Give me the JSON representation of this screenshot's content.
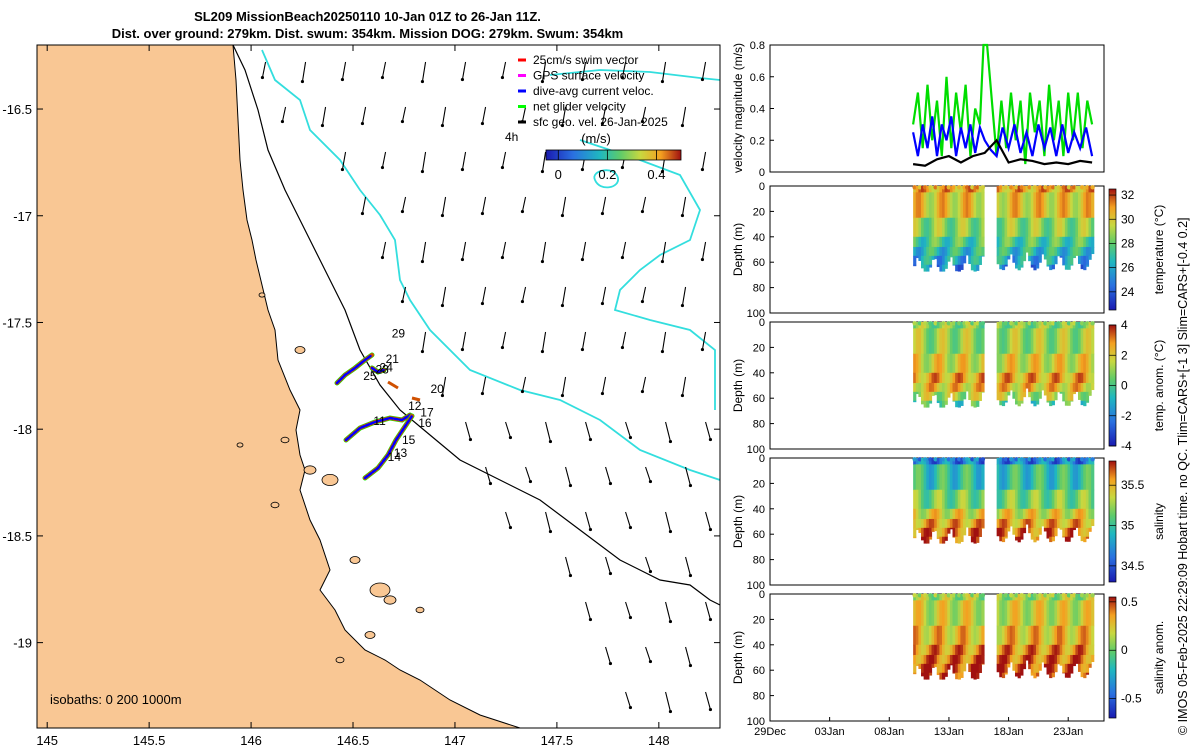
{
  "title": {
    "line1": "SL209 MissionBeach20250110 10-Jan 01Z to 26-Jan 11Z.",
    "line2": "Dist. over ground: 279km. Dist. swum: 354km. Mission DOG: 279km. Swum: 354km"
  },
  "credit": "© IMOS 05-Feb-2025 22:29:09 Hobart time. no QC. Tlim=CARS+[-1 3] Slim=CARS+[-0.4 0.2]",
  "colors": {
    "land": "#f9c794",
    "isobath": "#33dede",
    "ocean": "#ffffff",
    "coast": "#000000"
  },
  "chart_data": [
    {
      "type": "map",
      "x": {
        "ticks": [
          145,
          145.5,
          146,
          146.5,
          147,
          147.5,
          148
        ],
        "tick_labels": [
          "145",
          "145.5",
          "146",
          "146.5",
          "147",
          "147.5",
          "148"
        ],
        "range": [
          144.95,
          148.3
        ]
      },
      "y": {
        "ticks": [
          -16.5,
          -17,
          -17.5,
          -18,
          -18.5,
          -19
        ],
        "tick_labels": [
          "-16.5",
          "-17",
          "-17.5",
          "-18",
          "-18.5",
          "-19"
        ],
        "range": [
          -19.4,
          -16.2
        ]
      },
      "legend": {
        "entries": [
          {
            "label": "25cm/s swim vector",
            "color": "#ff0000"
          },
          {
            "label": "GPS surface velocity",
            "color": "#ff00ff"
          },
          {
            "label": "dive-avg current veloc.",
            "color": "#0000ff"
          },
          {
            "label": "net glider velocity",
            "color": "#00ff00"
          },
          {
            "label": "sfc geo. vel. 26-Jan-2025",
            "color": "#000000"
          }
        ],
        "scale_label": "4h"
      },
      "colorbar": {
        "title": "(m/s)",
        "ticks": [
          0,
          0.2,
          0.4
        ],
        "tick_labels": [
          "0",
          "0.2",
          "0.4"
        ],
        "range": [
          -0.05,
          0.5
        ]
      },
      "isobaths_label": "isobaths: 0   200  1000m",
      "track_day_labels": [
        {
          "text": "29",
          "lon": 146.69,
          "lat": -17.57
        },
        {
          "text": "21",
          "lon": 146.66,
          "lat": -17.69
        },
        {
          "text": "23",
          "lon": 146.61,
          "lat": -17.74
        },
        {
          "text": "24",
          "lon": 146.63,
          "lat": -17.73
        },
        {
          "text": "25",
          "lon": 146.55,
          "lat": -17.77
        },
        {
          "text": "20",
          "lon": 146.88,
          "lat": -17.83
        },
        {
          "text": "12",
          "lon": 146.77,
          "lat": -17.91
        },
        {
          "text": "17",
          "lon": 146.83,
          "lat": -17.94
        },
        {
          "text": "11",
          "lon": 146.6,
          "lat": -17.98
        },
        {
          "text": "16",
          "lon": 146.82,
          "lat": -17.99
        },
        {
          "text": "15",
          "lon": 146.74,
          "lat": -18.07
        },
        {
          "text": "13",
          "lon": 146.7,
          "lat": -18.13
        },
        {
          "text": "14",
          "lon": 146.67,
          "lat": -18.15
        }
      ]
    },
    {
      "type": "line",
      "ylabel": "velocity magnitude (m/s)",
      "y_ticks": [
        0,
        0.2,
        0.4,
        0.6,
        0.8
      ],
      "y_tick_labels": [
        "0",
        "0.2",
        "0.4",
        "0.6",
        "0.8"
      ],
      "ylim": [
        0,
        0.8
      ],
      "xlim_days": [
        0,
        28
      ],
      "series": [
        {
          "name": "net glider velocity",
          "color": "#00dd00",
          "x": [
            12,
            12.4,
            12.8,
            13.2,
            13.6,
            14,
            14.4,
            14.8,
            15.2,
            15.6,
            16,
            16.4,
            16.8,
            17.2,
            17.6,
            17.9,
            18.2,
            19,
            19.4,
            19.8,
            20.2,
            20.6,
            21,
            21.4,
            21.8,
            22.2,
            22.6,
            23,
            23.4,
            23.8,
            24.2,
            24.6,
            25,
            25.4,
            25.8,
            26.2,
            26.6,
            27
          ],
          "y": [
            0.3,
            0.5,
            0.15,
            0.55,
            0.2,
            0.45,
            0.1,
            0.6,
            0.15,
            0.5,
            0.25,
            0.55,
            0.1,
            0.4,
            0.3,
            0.8,
            0.8,
            0.1,
            0.45,
            0.15,
            0.5,
            0.2,
            0.45,
            0.05,
            0.5,
            0.25,
            0.45,
            0.1,
            0.55,
            0.2,
            0.45,
            0.1,
            0.5,
            0.2,
            0.5,
            0.15,
            0.45,
            0.3
          ]
        },
        {
          "name": "dive-avg current veloc.",
          "color": "#0000ff",
          "x": [
            12,
            12.4,
            12.8,
            13.2,
            13.6,
            14,
            14.4,
            14.8,
            15.2,
            15.6,
            16,
            16.4,
            16.8,
            17.2,
            17.6,
            18,
            18.5,
            19,
            19.5,
            20,
            20.5,
            21,
            21.5,
            22,
            22.5,
            23,
            23.5,
            24,
            24.5,
            25,
            25.5,
            26,
            26.5,
            27
          ],
          "y": [
            0.25,
            0.1,
            0.3,
            0.15,
            0.35,
            0.1,
            0.3,
            0.2,
            0.35,
            0.1,
            0.28,
            0.15,
            0.3,
            0.12,
            0.28,
            0.2,
            0.14,
            0.1,
            0.28,
            0.15,
            0.3,
            0.12,
            0.25,
            0.1,
            0.3,
            0.15,
            0.28,
            0.1,
            0.3,
            0.12,
            0.25,
            0.15,
            0.28,
            0.1
          ]
        },
        {
          "name": "sfc geo. vel.",
          "color": "#000000",
          "x": [
            12,
            13,
            14,
            15,
            16,
            17,
            18,
            19,
            20,
            21,
            22,
            23,
            24,
            25,
            26,
            27
          ],
          "y": [
            0.05,
            0.04,
            0.08,
            0.1,
            0.06,
            0.1,
            0.12,
            0.2,
            0.06,
            0.08,
            0.07,
            0.05,
            0.06,
            0.05,
            0.07,
            0.06
          ]
        }
      ]
    },
    {
      "type": "heatmap",
      "ylabel": "Depth (m)",
      "cbar_label": "temperature (°C)",
      "y_ticks": [
        0,
        20,
        40,
        60,
        80,
        100
      ],
      "y_tick_labels": [
        "0",
        "20",
        "40",
        "60",
        "80",
        "100"
      ],
      "cbar_ticks": [
        24,
        26,
        28,
        30,
        32
      ],
      "cbar_tick_labels": [
        "24",
        "26",
        "28",
        "30",
        "32"
      ],
      "clim": [
        22.5,
        32.5
      ],
      "palette": "parula-like",
      "depth_layers_c": [
        30.5,
        29.8,
        28.2,
        27,
        26.2,
        25.5,
        24.8
      ],
      "layer_depth_m": [
        5,
        25,
        40,
        48,
        55,
        62,
        67
      ]
    },
    {
      "type": "heatmap",
      "ylabel": "Depth (m)",
      "cbar_label": "temp. anom. (°C)",
      "y_ticks": [
        0,
        20,
        40,
        60,
        80,
        100
      ],
      "y_tick_labels": [
        "0",
        "20",
        "40",
        "60",
        "80",
        "100"
      ],
      "cbar_ticks": [
        -4,
        -2,
        0,
        2,
        4
      ],
      "cbar_tick_labels": [
        "-4",
        "-2",
        "0",
        "2",
        "4"
      ],
      "clim": [
        -4,
        4
      ],
      "palette": "parula-like",
      "depth_layers_c": [
        0.5,
        0.8,
        1.6,
        2.4,
        2.0,
        1.0,
        -0.5
      ],
      "layer_depth_m": [
        5,
        25,
        40,
        48,
        55,
        62,
        67
      ]
    },
    {
      "type": "heatmap",
      "ylabel": "Depth (m)",
      "cbar_label": "salinity",
      "y_ticks": [
        0,
        20,
        40,
        60,
        80,
        100
      ],
      "y_tick_labels": [
        "0",
        "20",
        "40",
        "60",
        "80",
        "100"
      ],
      "cbar_ticks": [
        34.5,
        35,
        35.5
      ],
      "cbar_tick_labels": [
        "34.5",
        "35",
        "35.5"
      ],
      "clim": [
        34.3,
        35.8
      ],
      "palette": "parula-like",
      "depth_layers_c": [
        34.6,
        34.9,
        35.1,
        35.35,
        35.5,
        35.6,
        35.65
      ],
      "layer_depth_m": [
        5,
        25,
        40,
        48,
        55,
        62,
        67
      ]
    },
    {
      "type": "heatmap",
      "ylabel": "Depth (m)",
      "cbar_label": "salinity anom.",
      "y_ticks": [
        0,
        20,
        40,
        60,
        80,
        100
      ],
      "y_tick_labels": [
        "0",
        "20",
        "40",
        "60",
        "80",
        "100"
      ],
      "cbar_ticks": [
        -0.5,
        0,
        0.5
      ],
      "cbar_tick_labels": [
        "-0.5",
        "0",
        "0.5"
      ],
      "clim": [
        -0.7,
        0.55
      ],
      "palette": "parula-like",
      "depth_layers_c": [
        0.05,
        0.15,
        0.25,
        0.35,
        0.4,
        0.45,
        0.5
      ],
      "layer_depth_m": [
        5,
        25,
        40,
        48,
        55,
        62,
        67
      ]
    }
  ],
  "time_axis": {
    "tick_days": [
      0,
      5,
      10,
      15,
      20,
      25
    ],
    "tick_labels": [
      "29Dec",
      "03Jan",
      "08Jan",
      "13Jan",
      "18Jan",
      "23Jan"
    ],
    "range_days": [
      0,
      28
    ],
    "data_segments": [
      [
        12,
        17.9
      ],
      [
        19,
        27
      ]
    ]
  }
}
